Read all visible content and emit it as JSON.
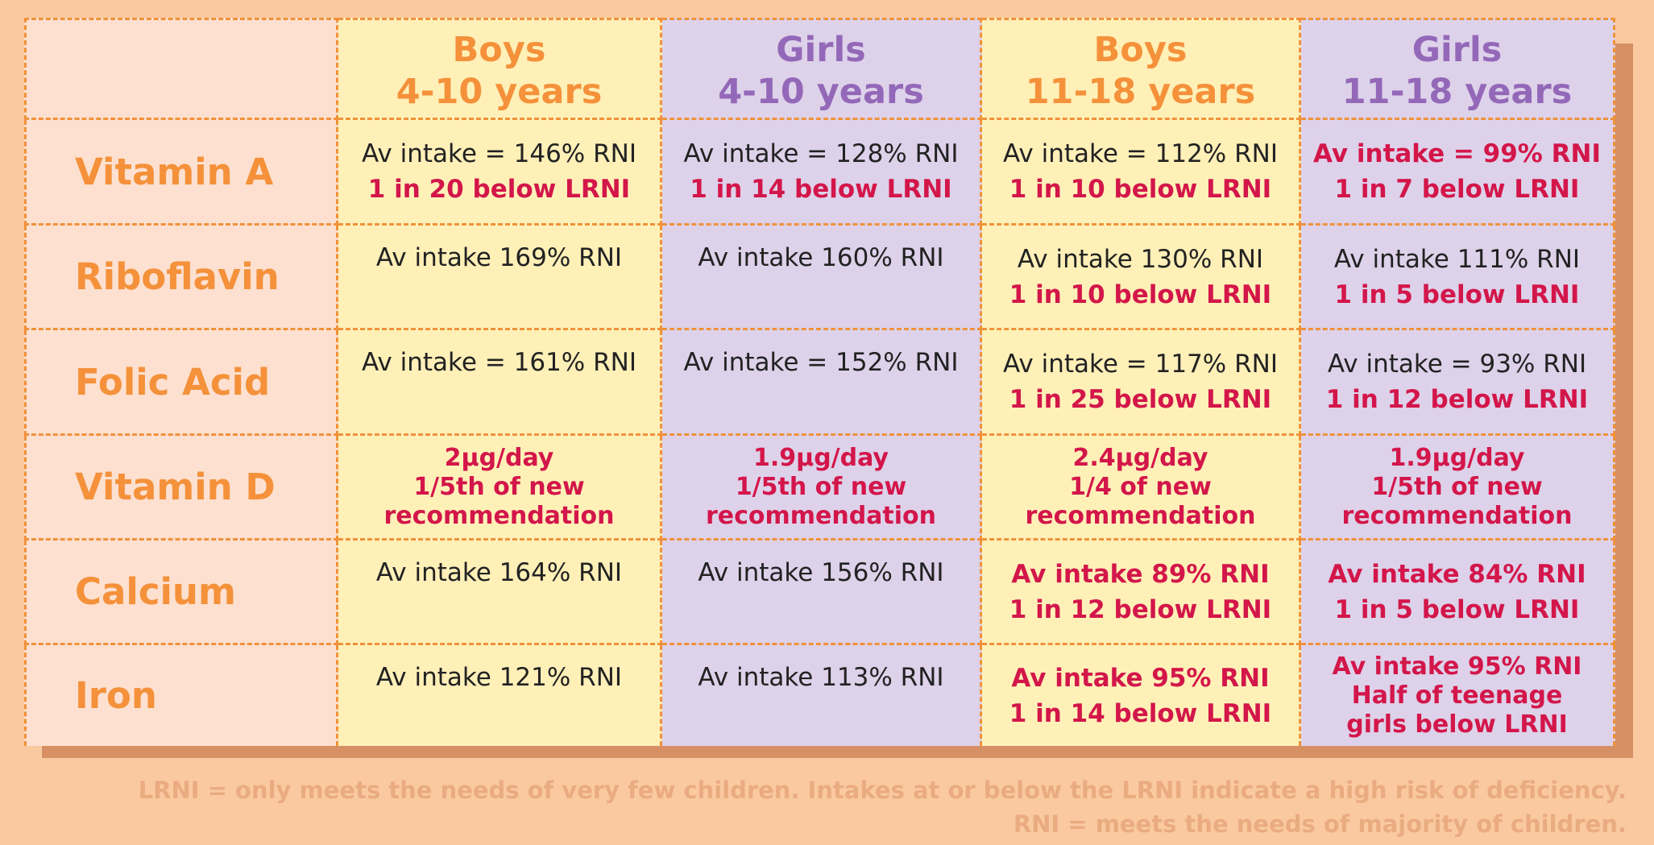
{
  "headers": [
    {
      "line1": "",
      "line2": ""
    },
    {
      "line1": "Boys",
      "line2": "4-10 years"
    },
    {
      "line1": "Girls",
      "line2": "4-10 years"
    },
    {
      "line1": "Boys",
      "line2": "11-18 years"
    },
    {
      "line1": "Girls",
      "line2": "11-18 years"
    }
  ],
  "rows": [
    {
      "label": "Vitamin A",
      "cells": [
        {
          "lines": [
            "Av intake = 146% RNI",
            "1 in 20 below LRNI"
          ]
        },
        {
          "lines": [
            "Av intake = 128% RNI",
            "1 in 14 below LRNI"
          ]
        },
        {
          "lines": [
            "Av intake = 112% RNI",
            "1 in 10 below LRNI"
          ]
        },
        {
          "lines": [
            "Av intake = 99% RNI",
            "1 in 7 below LRNI"
          ]
        }
      ]
    },
    {
      "label": "Riboflavin",
      "cells": [
        {
          "lines": [
            "Av intake 169% RNI"
          ]
        },
        {
          "lines": [
            "Av intake 160% RNI"
          ]
        },
        {
          "lines": [
            "Av intake 130% RNI",
            "1 in 10 below LRNI"
          ]
        },
        {
          "lines": [
            "Av intake 111% RNI",
            "1 in 5 below LRNI"
          ]
        }
      ]
    },
    {
      "label": "Folic Acid",
      "cells": [
        {
          "lines": [
            "Av intake = 161% RNI"
          ]
        },
        {
          "lines": [
            "Av intake = 152% RNI"
          ]
        },
        {
          "lines": [
            "Av intake = 117% RNI",
            "1 in 25 below LRNI"
          ]
        },
        {
          "lines": [
            "Av intake = 93% RNI",
            "1 in 12 below LRNI"
          ]
        }
      ]
    },
    {
      "label": "Vitamin D",
      "cells": [
        {
          "lines": [
            "2µg/day",
            "1/5th of new",
            "recommendation"
          ]
        },
        {
          "lines": [
            "1.9µg/day",
            "1/5th of new",
            "recommendation"
          ]
        },
        {
          "lines": [
            "2.4µg/day",
            "1/4 of new",
            "recommendation"
          ]
        },
        {
          "lines": [
            "1.9µg/day",
            "1/5th of new",
            "recommendation"
          ]
        }
      ]
    },
    {
      "label": "Calcium",
      "cells": [
        {
          "lines": [
            "Av intake 164% RNI"
          ]
        },
        {
          "lines": [
            "Av intake 156% RNI"
          ]
        },
        {
          "lines": [
            "Av intake 89% RNI",
            "1 in 12 below LRNI"
          ]
        },
        {
          "lines": [
            "Av intake 84% RNI",
            "1 in 5 below LRNI"
          ]
        }
      ]
    },
    {
      "label": "Iron",
      "cells": [
        {
          "lines": [
            "Av intake 121% RNI"
          ]
        },
        {
          "lines": [
            "Av intake 113% RNI"
          ]
        },
        {
          "lines": [
            "Av intake 95% RNI",
            "1 in 14 below LRNI"
          ]
        },
        {
          "lines": [
            "Av intake 95% RNI",
            "Half of teenage",
            "girls below LRNI"
          ]
        }
      ]
    }
  ],
  "footnotes": {
    "line1": "LRNI = only meets the needs of very few children. Intakes at or below the LRNI indicate a high risk of deficiency.",
    "line2": "RNI = meets the needs of majority of children."
  },
  "colors": {
    "background": "#fac9a0",
    "boys_column": "#fff0b8",
    "girls_column": "#ddd2ea",
    "label_column": "#fde0d0",
    "boys_heading": "#f4913a",
    "girls_heading": "#9468b8",
    "warning_text": "#d3164a",
    "normal_text": "#222222"
  }
}
